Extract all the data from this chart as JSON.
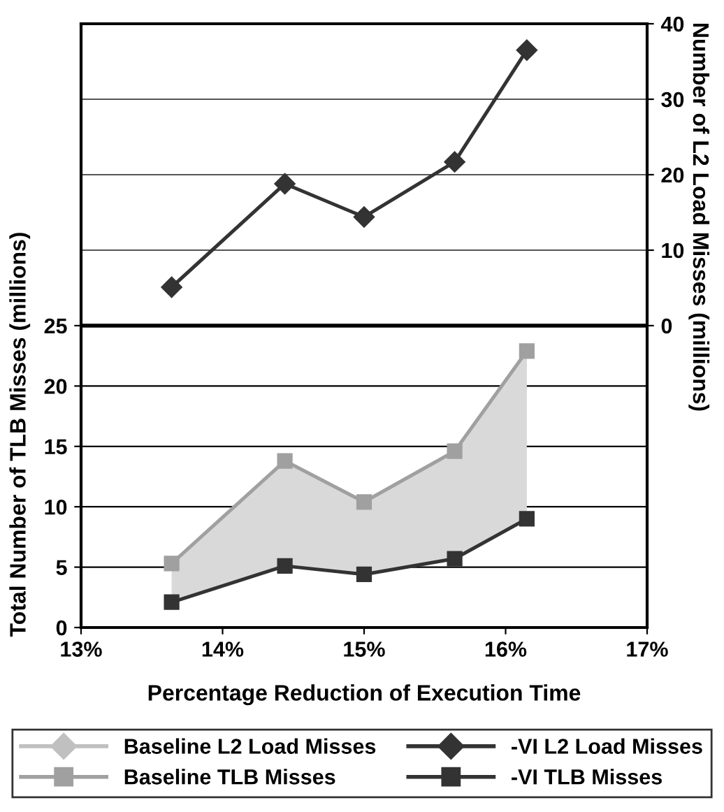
{
  "chart_data": {
    "type": "line",
    "xlabel": "Percentage Reduction of Execution Time",
    "ylabel": "Total Number of TLB Misses (millions)",
    "y2label": "Number of L2 Load Misses (millions)",
    "x": [
      13.64,
      14.44,
      15.0,
      15.64,
      16.15
    ],
    "series": [
      {
        "name": "Baseline L2 Load Misses",
        "color": "#c0c0c0",
        "marker": "diamond",
        "axis": "y2",
        "values": [
          null,
          null,
          null,
          null,
          null
        ]
      },
      {
        "name": "Baseline TLB Misses",
        "color": "#a0a0a0",
        "marker": "square",
        "values": [
          5.3,
          13.8,
          10.4,
          14.6,
          22.9
        ],
        "lower": [
          2.1,
          5.1,
          4.4,
          5.7,
          9.0
        ],
        "upper": [
          5.3,
          13.8,
          10.4,
          14.6,
          22.9
        ]
      },
      {
        "name": "-VI L2 Load Misses",
        "color": "#333333",
        "marker": "diamond",
        "axis": "y2",
        "values": [
          5.1,
          18.8,
          14.4,
          21.7,
          36.5
        ]
      },
      {
        "name": "-VI TLB Misses",
        "color": "#333333",
        "marker": "square",
        "values": [
          2.1,
          5.1,
          4.4,
          5.7,
          9.0
        ]
      }
    ],
    "xlim": [
      13,
      17
    ],
    "xticks": [
      {
        "value": 13,
        "label": "13%"
      },
      {
        "value": 14,
        "label": "14%"
      },
      {
        "value": 15,
        "label": "15%"
      },
      {
        "value": 16,
        "label": "16%"
      },
      {
        "value": 17,
        "label": "17%"
      }
    ],
    "ylim": [
      0,
      50
    ],
    "yticks": [
      0,
      5,
      10,
      15,
      20,
      25
    ],
    "y2lim": [
      -40,
      40
    ],
    "y2ticks": [
      0,
      10,
      20,
      30,
      40
    ],
    "ref_lines": [
      {
        "axis": "y2",
        "value": 0,
        "color": "#000000"
      }
    ],
    "grid": "y",
    "legend": "bottom"
  }
}
